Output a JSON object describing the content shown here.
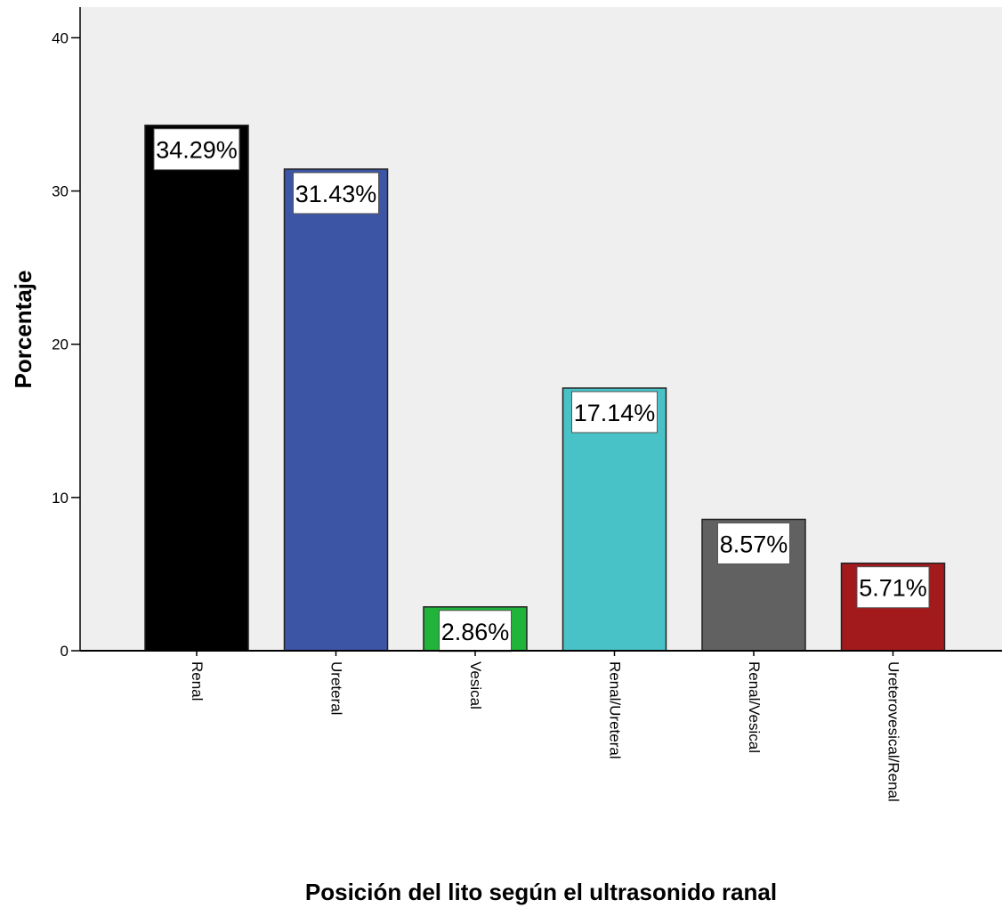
{
  "chart_data": {
    "type": "bar",
    "xlabel": "Posición del lito según el ultrasonido ranal",
    "ylabel": "Porcentaje",
    "ylim": [
      0,
      42
    ],
    "yticks": [
      0,
      10,
      20,
      30,
      40
    ],
    "grid": false,
    "categories": [
      "Renal",
      "Ureteral",
      "Vesical",
      "Renal/Ureteral",
      "Renal/Vesical",
      "Ureterovesical/Renal"
    ],
    "values": [
      34.29,
      31.43,
      2.86,
      17.14,
      8.57,
      5.71
    ],
    "data_labels": [
      "34.29%",
      "31.43%",
      "2.86%",
      "17.14%",
      "8.57%",
      "5.71%"
    ],
    "colors": [
      "#000000",
      "#3c55a5",
      "#21b43a",
      "#48c2c6",
      "#616161",
      "#a31a1d"
    ],
    "plot_background": "#efefef"
  }
}
